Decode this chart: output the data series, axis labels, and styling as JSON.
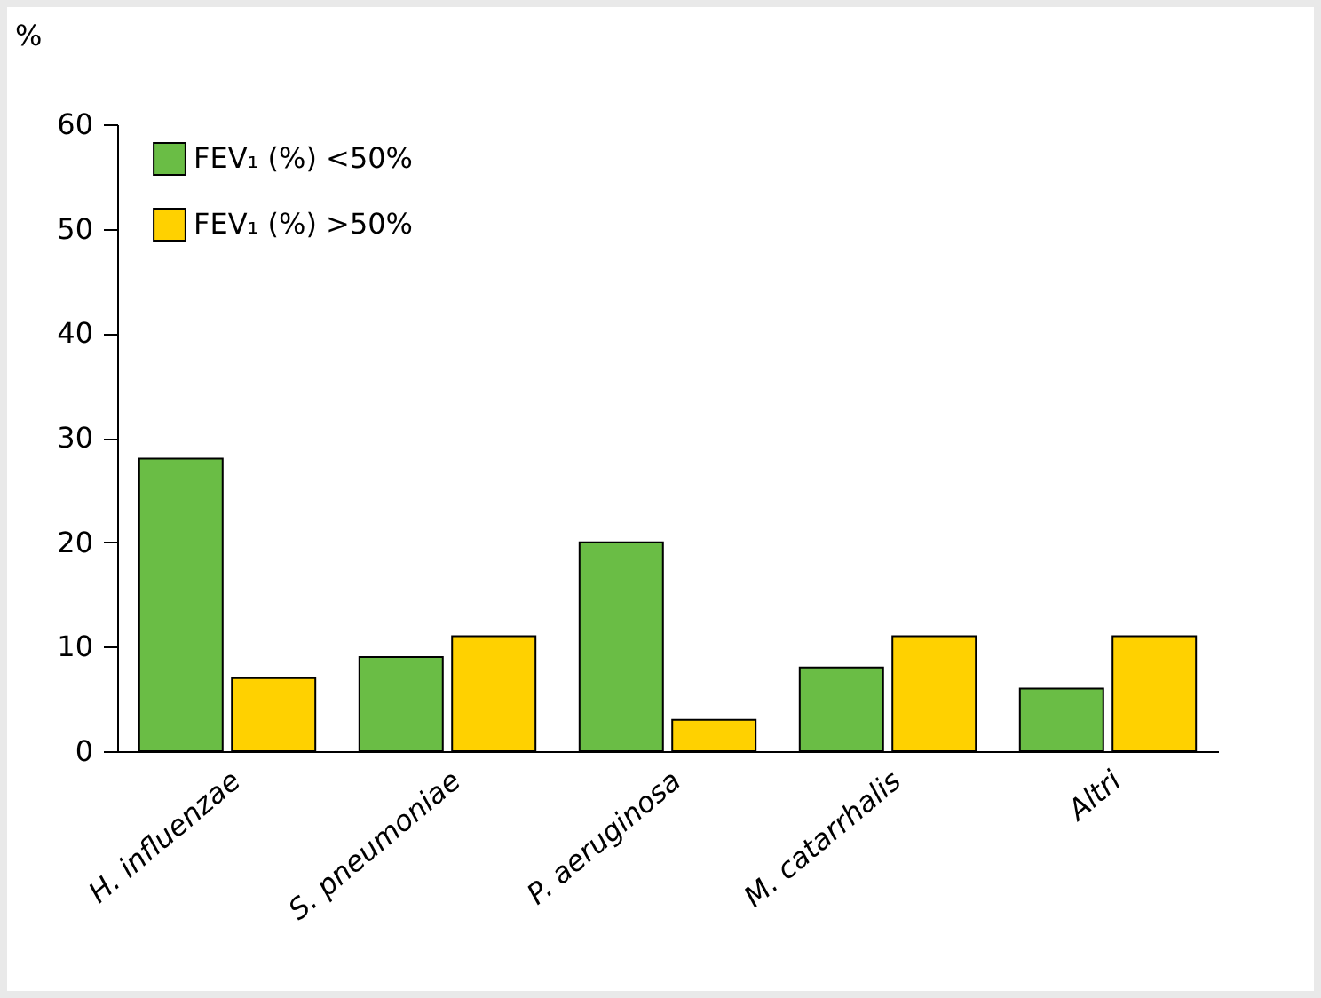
{
  "chart_data": {
    "type": "bar",
    "ylabel": "%",
    "categories": [
      "H. influenzae",
      "S. pneumoniae",
      "P. aeruginosa",
      "M. catarrhalis",
      "Altri"
    ],
    "series": [
      {
        "name": "FEV₁ (%) <50%",
        "color": "#6abd45",
        "values": [
          28,
          9,
          20,
          8,
          6
        ]
      },
      {
        "name": "FEV₁ (%) >50%",
        "color": "#ffd100",
        "values": [
          7,
          11,
          3,
          11,
          11
        ]
      }
    ],
    "ylim": [
      0,
      60
    ],
    "yticks": [
      0,
      10,
      20,
      30,
      40,
      50,
      60
    ],
    "grid": false,
    "legend": "top left"
  }
}
